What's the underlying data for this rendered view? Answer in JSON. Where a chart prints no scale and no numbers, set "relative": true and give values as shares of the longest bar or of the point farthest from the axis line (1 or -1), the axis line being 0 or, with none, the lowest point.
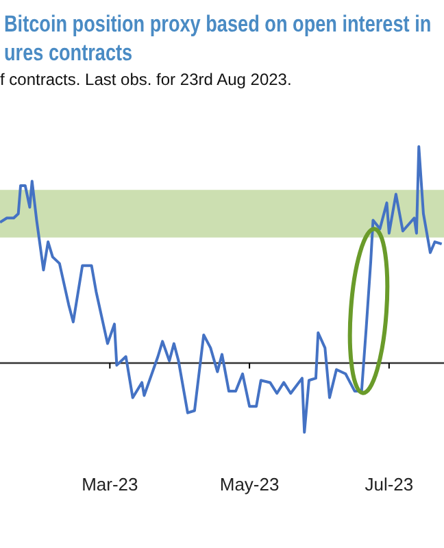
{
  "chart_data": {
    "type": "line",
    "title": "Bitcoin position proxy based on open interest in\nures contracts",
    "subtitle": "f contracts. Last obs. for 23rd Aug 2023.",
    "relative": true,
    "x": [
      "2023-01-12",
      "2023-01-15",
      "2023-01-18",
      "2023-01-20",
      "2023-01-21",
      "2023-01-23",
      "2023-01-25",
      "2023-01-26",
      "2023-01-28",
      "2023-01-31",
      "2023-02-02",
      "2023-02-04",
      "2023-02-07",
      "2023-02-11",
      "2023-02-13",
      "2023-02-17",
      "2023-02-21",
      "2023-02-23",
      "2023-02-28",
      "2023-03-03",
      "2023-03-04",
      "2023-03-08",
      "2023-03-11",
      "2023-03-15",
      "2023-03-16",
      "2023-03-22",
      "2023-03-24",
      "2023-03-27",
      "2023-03-29",
      "2023-03-31",
      "2023-04-04",
      "2023-04-07",
      "2023-04-11",
      "2023-04-14",
      "2023-04-17",
      "2023-04-19",
      "2023-04-22",
      "2023-04-25",
      "2023-04-28",
      "2023-05-01",
      "2023-05-04",
      "2023-05-06",
      "2023-05-10",
      "2023-05-13",
      "2023-05-16",
      "2023-05-19",
      "2023-05-24",
      "2023-05-25",
      "2023-05-27",
      "2023-05-30",
      "2023-05-31",
      "2023-06-03",
      "2023-06-05",
      "2023-06-08",
      "2023-06-12",
      "2023-06-16",
      "2023-06-19",
      "2023-06-21",
      "2023-06-23",
      "2023-06-24",
      "2023-06-27",
      "2023-06-30",
      "2023-07-01",
      "2023-07-04",
      "2023-07-07",
      "2023-07-12",
      "2023-07-13",
      "2023-07-14",
      "2023-07-16",
      "2023-07-19",
      "2023-07-21",
      "2023-07-24"
    ],
    "series": [
      {
        "color": "#4472c4",
        "values": [
          0.65,
          0.67,
          0.67,
          0.69,
          0.82,
          0.82,
          0.72,
          0.84,
          0.66,
          0.43,
          0.56,
          0.49,
          0.46,
          0.27,
          0.19,
          0.45,
          0.45,
          0.33,
          0.09,
          0.18,
          -0.01,
          0.03,
          -0.16,
          -0.09,
          -0.15,
          0.03,
          0.1,
          0.01,
          0.09,
          0.01,
          -0.23,
          -0.22,
          0.13,
          0.07,
          -0.04,
          0.04,
          -0.13,
          -0.13,
          -0.05,
          -0.2,
          -0.2,
          -0.08,
          -0.09,
          -0.14,
          -0.09,
          -0.14,
          -0.07,
          -0.32,
          -0.08,
          -0.07,
          0.14,
          0.07,
          -0.16,
          -0.03,
          -0.05,
          -0.13,
          -0.13,
          0.16,
          0.47,
          0.66,
          0.62,
          0.74,
          0.6,
          0.78,
          0.61,
          0.67,
          0.6,
          1.0,
          0.69,
          0.51,
          0.56,
          0.55
        ]
      }
    ],
    "xlim": [
      "2023-01-12",
      "2023-07-25"
    ],
    "xticks": [
      {
        "value": "2023-03-01",
        "label": "Mar-23"
      },
      {
        "value": "2023-05-01",
        "label": "May-23"
      },
      {
        "value": "2023-07-01",
        "label": "Jul-23"
      }
    ],
    "bands": [
      {
        "axis": "y",
        "from": 0.58,
        "to": 0.8,
        "color": "#c6dba8"
      }
    ],
    "tick_labels": "x"
  }
}
